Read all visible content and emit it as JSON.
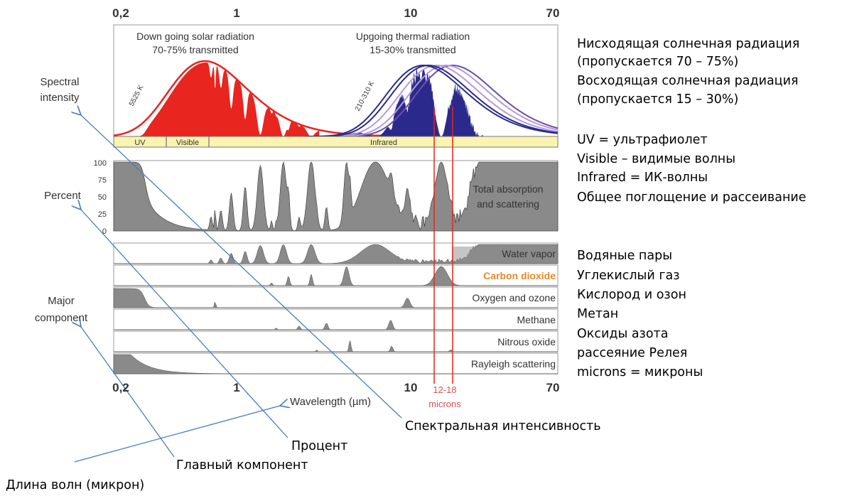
{
  "figure": {
    "top_ticks": [
      "0,2",
      "1",
      "10",
      "70"
    ],
    "bottom_ticks": [
      "0,2",
      "1",
      "10",
      "70"
    ],
    "x_label": "Wavelength (µm)",
    "y_labels": {
      "spectral": [
        "Spectral",
        "intensity"
      ],
      "percent": "Percent",
      "major": [
        "Major",
        "component"
      ]
    },
    "solar": [
      "Down going solar radiation",
      "70-75% transmitted"
    ],
    "thermal": [
      "Upgoing thermal radiation",
      "15-30% transmitted"
    ],
    "solar_temp": "5525 K",
    "thermal_temp": "210-310 K",
    "bands": [
      "UV",
      "Visible",
      "Infrared"
    ],
    "percent_ticks": [
      "100",
      "75",
      "50",
      "25",
      "0"
    ],
    "total": [
      "Total absorption",
      "and scattering"
    ],
    "components": [
      "Water vapor",
      "Carbon dioxide",
      "Oxygen and ozone",
      "Methane",
      "Nitrous oxide",
      "Rayleigh scattering"
    ],
    "microns": [
      "12-18",
      "microns"
    ]
  },
  "legend": [
    "Нисходящая солнечная радиация",
    "(пропускается 70 – 75%)",
    "Восходящая солнечная радиация",
    "(пропускается 15 – 30%)",
    "UV = ультрафиолет",
    "Visible – видимые волны",
    "Infrared = ИК-волны",
    "Общее поглощение и рассеивание",
    "Водяные пары",
    "Углекислый газ",
    "Кислород и озон",
    "Метан",
    "Оксиды азота",
    "рассеяние Релея",
    "microns = микроны"
  ],
  "annotations": [
    "Спектральная интенсивность",
    "Процент",
    "Главный компонент",
    "Длина волн (микрон)"
  ]
}
